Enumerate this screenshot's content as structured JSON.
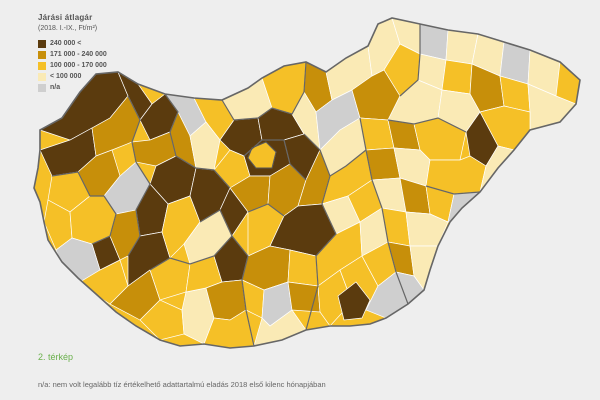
{
  "legend": {
    "title": "Járási átlagár",
    "subtitle": "(2018. I.-IX., Ft/m²)",
    "items": [
      {
        "label": "240 000 <",
        "color": "#5b3b0e"
      },
      {
        "label": "171 000 - 240 000",
        "color": "#c78f0a"
      },
      {
        "label": "100 000 - 170 000",
        "color": "#f5c027"
      },
      {
        "label": "< 100 000",
        "color": "#faeab5"
      },
      {
        "label": "n/a",
        "color": "#cfcfcf"
      }
    ]
  },
  "caption": "2. térkép",
  "footnote": "n/a: nem volt legalább tíz értékelhető adattartalmú eladás 2018 első kilenc hónapjában"
}
